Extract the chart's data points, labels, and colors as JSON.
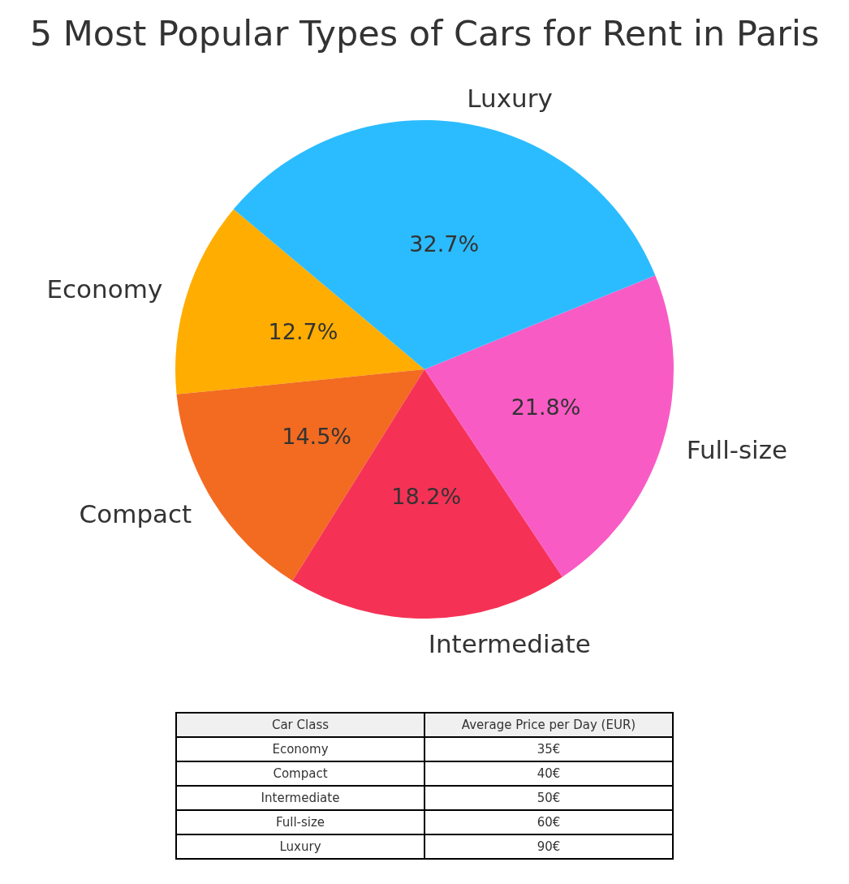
{
  "chart_data": {
    "type": "pie",
    "title": "5 Most Popular Types of Cars for Rent in Paris",
    "categories": [
      "Economy",
      "Compact",
      "Intermediate",
      "Full-size",
      "Luxury"
    ],
    "values": [
      12.7,
      14.5,
      18.2,
      21.8,
      32.7
    ],
    "colors": [
      "#ffad00",
      "#f26b21",
      "#f53255",
      "#f95bc5",
      "#2bbcff"
    ],
    "value_labels": [
      "12.7%",
      "14.5%",
      "18.2%",
      "21.8%",
      "32.7%"
    ],
    "annotations": [
      "Car Class",
      "Average Price per Day (EUR)",
      "35€",
      "40€",
      "50€",
      "60€",
      "90€"
    ]
  }
}
